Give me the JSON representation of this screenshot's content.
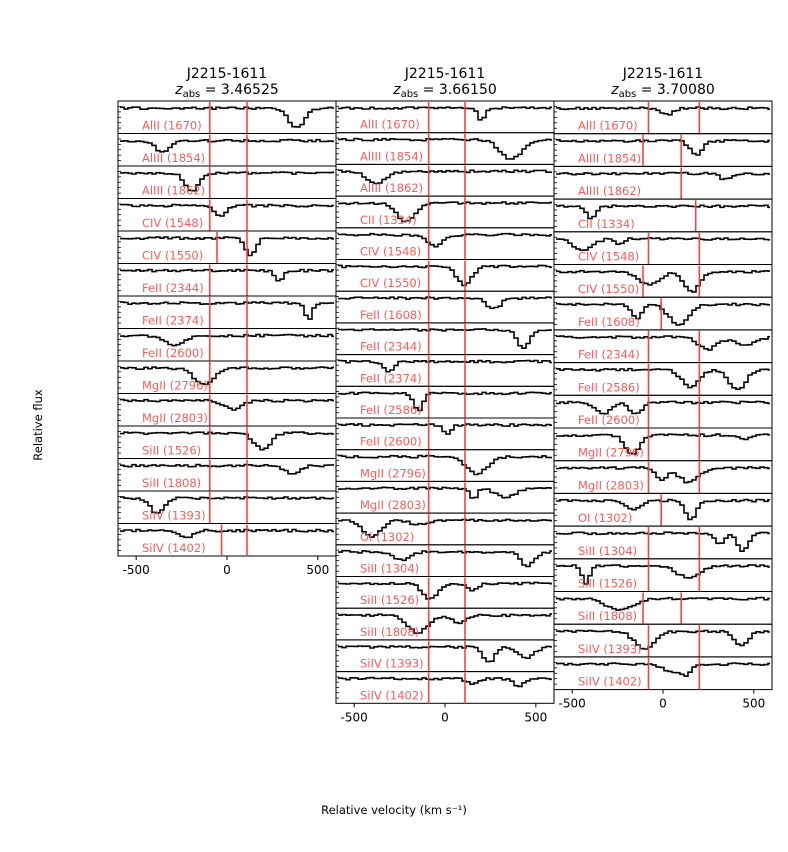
{
  "figure": {
    "ylabel": "Relative flux",
    "xlabel": "Relative velocity (km s⁻¹)"
  },
  "colors": {
    "spectrum": "#000000",
    "marker": "#ff4040",
    "ion_label": "#ff5a5a"
  },
  "chart_data": [
    {
      "type": "line",
      "title": "J2215-1611",
      "subtitle": "z_abs = 3.46525",
      "z_abs": "3.46525",
      "x_ticks": [
        "-500",
        "0",
        "500"
      ],
      "xlim": [
        -600,
        600
      ],
      "velocity_markers": [
        -95,
        110
      ],
      "rows": [
        {
          "label": "AlII (1670)",
          "markers": [
            -95,
            110
          ]
        },
        {
          "label": "AlIII (1854)",
          "markers": [
            -95,
            110
          ]
        },
        {
          "label": "AlIII (1862)",
          "markers": [
            -95,
            110
          ]
        },
        {
          "label": "CIV (1548)",
          "markers": [
            -95,
            110
          ]
        },
        {
          "label": "CIV (1550)",
          "markers": [
            -55,
            110
          ]
        },
        {
          "label": "FeII (2344)",
          "markers": [
            -95,
            110
          ]
        },
        {
          "label": "FeII (2374)",
          "markers": [
            -95,
            110
          ]
        },
        {
          "label": "FeII (2600)",
          "markers": [
            -95,
            110
          ]
        },
        {
          "label": "MgII (2796)",
          "markers": [
            -95,
            110
          ]
        },
        {
          "label": "MgII (2803)",
          "markers": [
            -95,
            110
          ]
        },
        {
          "label": "SiII (1526)",
          "markers": [
            -95,
            110
          ]
        },
        {
          "label": "SiII (1808)",
          "markers": [
            -95,
            110
          ]
        },
        {
          "label": "SiIV (1393)",
          "markers": [
            -95,
            110
          ]
        },
        {
          "label": "SiIV (1402)",
          "markers": [
            -30,
            110
          ]
        }
      ]
    },
    {
      "type": "line",
      "title": "J2215-1611",
      "subtitle": "z_abs = 3.66150",
      "z_abs": "3.66150",
      "x_ticks": [
        "-500",
        "0",
        "500"
      ],
      "xlim": [
        -600,
        600
      ],
      "velocity_markers": [
        -90,
        110
      ],
      "rows": [
        {
          "label": "AlII (1670)",
          "markers": [
            -90,
            110
          ]
        },
        {
          "label": "AlIII (1854)",
          "markers": [
            -90,
            110
          ]
        },
        {
          "label": "AlIII (1862)",
          "markers": [
            -90,
            110
          ]
        },
        {
          "label": "CII (1334)",
          "markers": [
            -90,
            110
          ]
        },
        {
          "label": "CIV (1548)",
          "markers": [
            -90,
            110
          ]
        },
        {
          "label": "CIV (1550)",
          "markers": [
            -90,
            110
          ]
        },
        {
          "label": "FeII (1608)",
          "markers": [
            -90,
            110
          ]
        },
        {
          "label": "FeII (2344)",
          "markers": [
            -90,
            110
          ]
        },
        {
          "label": "FeII (2374)",
          "markers": [
            -90,
            110
          ]
        },
        {
          "label": "FeII (2586)",
          "markers": [
            -90,
            110
          ]
        },
        {
          "label": "FeII (2600)",
          "markers": [
            -90,
            110
          ]
        },
        {
          "label": "MgII (2796)",
          "markers": [
            -90,
            110
          ]
        },
        {
          "label": "MgII (2803)",
          "markers": [
            -90,
            110
          ]
        },
        {
          "label": "OI (1302)",
          "markers": [
            -90,
            110
          ]
        },
        {
          "label": "SiII (1304)",
          "markers": [
            -90,
            110
          ]
        },
        {
          "label": "SiII (1526)",
          "markers": [
            -90,
            110
          ]
        },
        {
          "label": "SiII (1808)",
          "markers": [
            -90,
            110
          ]
        },
        {
          "label": "SiIV (1393)",
          "markers": [
            -90,
            110
          ]
        },
        {
          "label": "SiIV (1402)",
          "markers": [
            -90,
            110
          ]
        }
      ]
    },
    {
      "type": "line",
      "title": "J2215-1611",
      "subtitle": "z_abs = 3.70080",
      "z_abs": "3.70080",
      "x_ticks": [
        "-500",
        "0",
        "500"
      ],
      "xlim": [
        -600,
        600
      ],
      "velocity_markers": [
        -80,
        200
      ],
      "rows": [
        {
          "label": "AlII (1670)",
          "markers": [
            -80,
            200
          ]
        },
        {
          "label": "AlIII (1854)",
          "markers": [
            -110,
            100
          ]
        },
        {
          "label": "AlIII (1862)",
          "markers": [
            100
          ]
        },
        {
          "label": "CII (1334)",
          "markers": [
            180
          ]
        },
        {
          "label": "CIV (1548)",
          "markers": [
            -80,
            200
          ]
        },
        {
          "label": "CIV (1550)",
          "markers": [
            -110,
            200
          ]
        },
        {
          "label": "FeII (1608)",
          "markers": [
            -10
          ]
        },
        {
          "label": "FeII (2344)",
          "markers": [
            -80,
            200
          ]
        },
        {
          "label": "FeII (2586)",
          "markers": [
            -80,
            200
          ]
        },
        {
          "label": "FeII (2600)",
          "markers": [
            -80,
            200
          ]
        },
        {
          "label": "MgII (2796)",
          "markers": [
            -80,
            200
          ]
        },
        {
          "label": "MgII (2803)",
          "markers": [
            -80,
            200
          ]
        },
        {
          "label": "OI (1302)",
          "markers": [
            -10
          ]
        },
        {
          "label": "SiII (1304)",
          "markers": [
            -80,
            200
          ]
        },
        {
          "label": "SiII (1526)",
          "markers": [
            -80,
            200
          ]
        },
        {
          "label": "SiII (1808)",
          "markers": [
            -110,
            100
          ]
        },
        {
          "label": "SiIV (1393)",
          "markers": [
            -80,
            200
          ]
        },
        {
          "label": "SiIV (1402)",
          "markers": [
            -80,
            200
          ]
        }
      ]
    }
  ]
}
